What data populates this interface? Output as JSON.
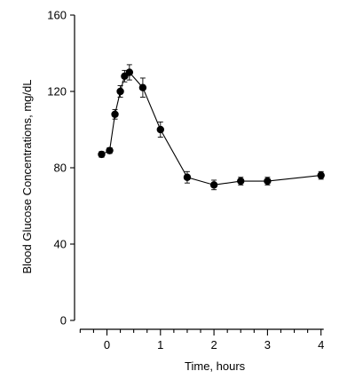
{
  "chart_data": {
    "type": "line",
    "xlabel": "Time, hours",
    "ylabel": "Blood Glucose Concentrations, mg/dL",
    "xlim": [
      -0.5,
      4.1
    ],
    "ylim": [
      0,
      160
    ],
    "x_ticks": [
      0,
      1,
      2,
      3,
      4
    ],
    "x_minor_ticks": [
      -0.5,
      -0.25,
      0.25,
      0.5,
      0.75,
      1.25,
      1.5,
      1.75,
      2.25,
      2.5,
      2.75,
      3.25,
      3.5,
      3.75
    ],
    "y_ticks": [
      0,
      40,
      80,
      120,
      160
    ],
    "grid": false,
    "series": [
      {
        "x": [
          -0.1,
          0.05,
          0.15,
          0.25,
          0.33,
          0.42,
          0.67,
          1.0,
          1.5,
          2.0,
          2.5,
          3.0,
          4.0
        ],
        "y": [
          87,
          89,
          108,
          120,
          128,
          130,
          122,
          100,
          75,
          71,
          73,
          73,
          76
        ],
        "err": [
          1.5,
          1.5,
          2.5,
          3,
          3,
          4,
          5,
          4,
          3,
          2.5,
          2,
          2,
          2
        ]
      }
    ]
  }
}
